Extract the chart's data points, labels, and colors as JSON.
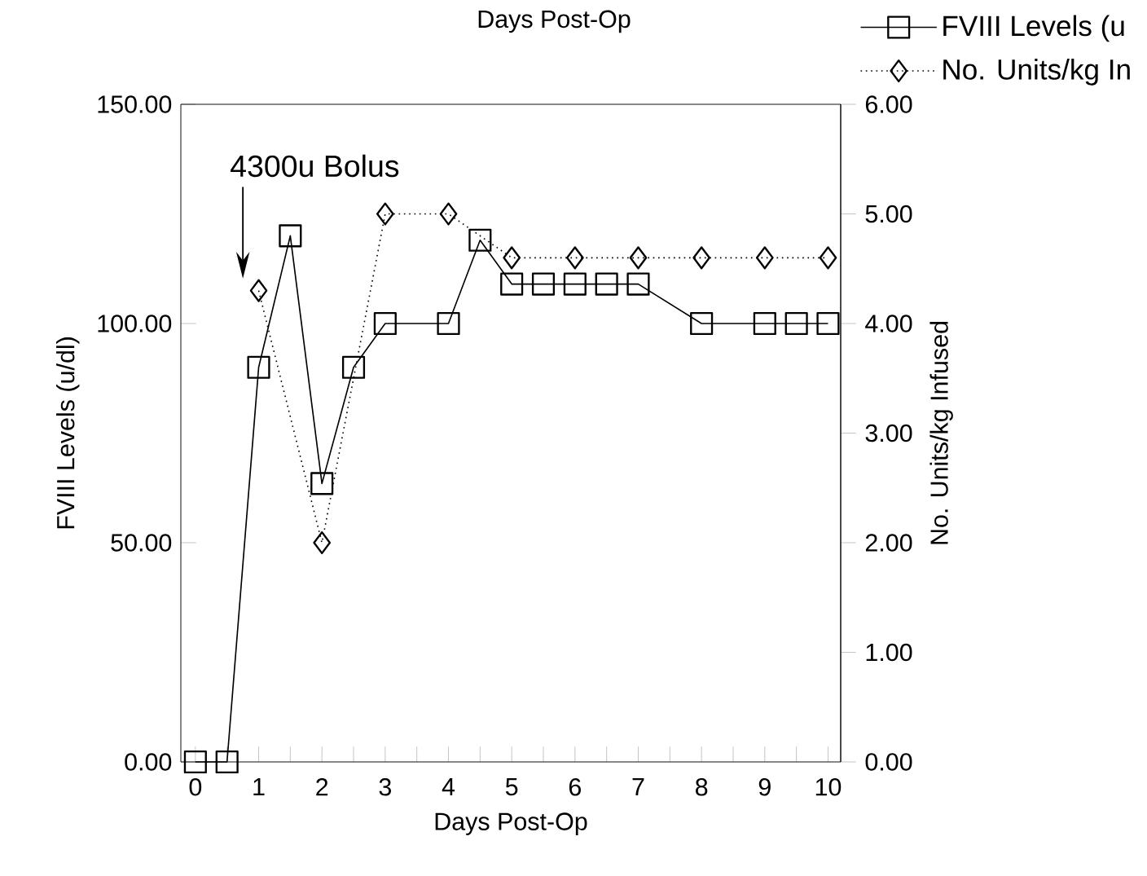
{
  "chart_data": {
    "type": "line",
    "xlabel": "Days Post-Op",
    "ylabel": "FVIII Levels (u/dl)",
    "y2label": "No. Units/kg Infused",
    "annotations": [
      "Days Post-Op",
      "4300u Bolus"
    ],
    "xlim": [
      -0.23,
      10.2
    ],
    "xticks": [
      0,
      1,
      2,
      3,
      4,
      5,
      6,
      7,
      8,
      9,
      10
    ],
    "ylim": [
      0,
      150
    ],
    "yticks": [
      {
        "value": 0,
        "label": "0.00"
      },
      {
        "value": 50,
        "label": "50.00"
      },
      {
        "value": 100,
        "label": "100.00"
      },
      {
        "value": 150,
        "label": "150.00"
      }
    ],
    "y2lim": [
      0,
      6
    ],
    "y2ticks": [
      {
        "value": 0,
        "label": "0.00"
      },
      {
        "value": 1,
        "label": "1.00"
      },
      {
        "value": 2,
        "label": "2.00"
      },
      {
        "value": 3,
        "label": "3.00"
      },
      {
        "value": 4,
        "label": "4.00"
      },
      {
        "value": 5,
        "label": "5.00"
      },
      {
        "value": 6,
        "label": "6.00"
      }
    ],
    "legend": "top right",
    "series": [
      {
        "name": "FVIII Levels (u",
        "color": "#000000",
        "marker": "square",
        "line_style": "solid",
        "x": [
          0,
          0.5,
          1,
          1.5,
          2,
          2.5,
          3,
          4,
          4.5,
          5,
          5.5,
          6,
          6.5,
          7,
          8,
          9,
          9.5,
          10
        ],
        "values": [
          0,
          0,
          90,
          120,
          63.5,
          90,
          100,
          100,
          119,
          109,
          109,
          109,
          109,
          109,
          100,
          100,
          100,
          100
        ]
      },
      {
        "name": "No. Units/kg In",
        "color": "#000000",
        "marker": "diamond",
        "line_style": "dotted",
        "axis": "y2",
        "x": [
          1,
          2,
          3,
          4,
          5,
          6,
          7,
          8,
          9,
          10
        ],
        "values": [
          4.3,
          2.0,
          5.0,
          5.0,
          4.6,
          4.6,
          4.6,
          4.6,
          4.6,
          4.6
        ]
      }
    ]
  }
}
